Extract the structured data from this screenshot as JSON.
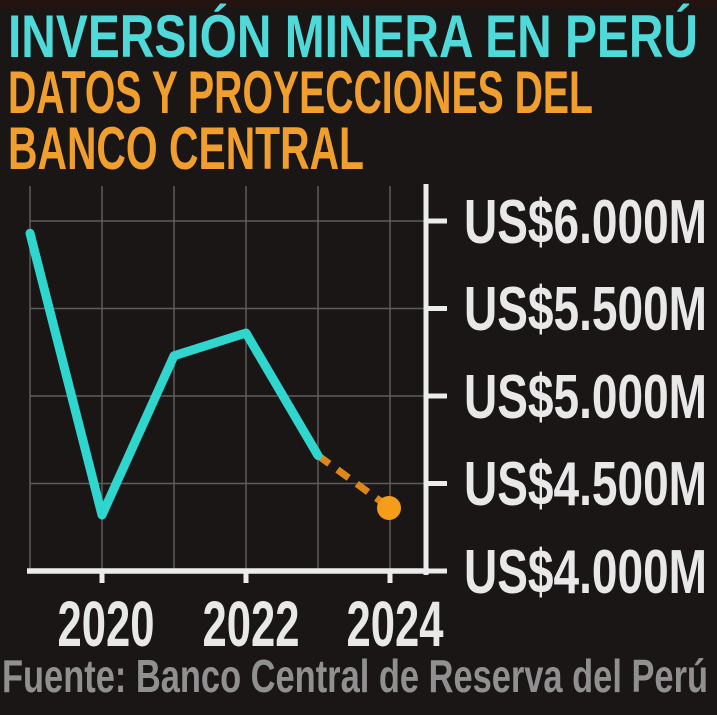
{
  "page": {
    "background": "#1a1616"
  },
  "header": {
    "title_line1": "INVERSIÓN MINERA EN PERÚ",
    "subtitle_line1": "DATOS Y PROYECCIONES DEL",
    "subtitle_line2": "BANCO CENTRAL",
    "title_color": "#4fd9d9",
    "subtitle_color": "#f09e2d"
  },
  "footer": {
    "source": "Fuente: Banco Central de Reserva del Perú",
    "color": "#909090"
  },
  "chart_data": {
    "type": "line",
    "title": "INVERSIÓN MINERA EN PERÚ – DATOS Y PROYECCIONES DEL BANCO CENTRAL",
    "x": [
      2019,
      2020,
      2021,
      2022,
      2023,
      2024
    ],
    "series": [
      {
        "name": "Inversión minera (US$ millones)",
        "values": [
          5930,
          4320,
          5230,
          5360,
          4660,
          4360
        ]
      }
    ],
    "projected_from_index": 4,
    "x_tick_years": [
      2020,
      2022,
      2024
    ],
    "x_tick_labels": [
      "2020",
      "2022",
      "2024"
    ],
    "y_tick_values": [
      6000,
      5500,
      5000,
      4500,
      4000
    ],
    "y_tick_labels": [
      "US$6.000M",
      "US$5.500M",
      "US$5.000M",
      "US$4.500M",
      "US$4.000M"
    ],
    "ylim": [
      4000,
      6200
    ],
    "grid": true,
    "legend": "none",
    "colors": {
      "actual_line": "#2fd6ce",
      "projection_line": "#dd861c",
      "projection_point": "#f59d18",
      "grid": "#5c5c5c",
      "axis": "#ececec",
      "tick_label": "#e8e8e8"
    }
  }
}
